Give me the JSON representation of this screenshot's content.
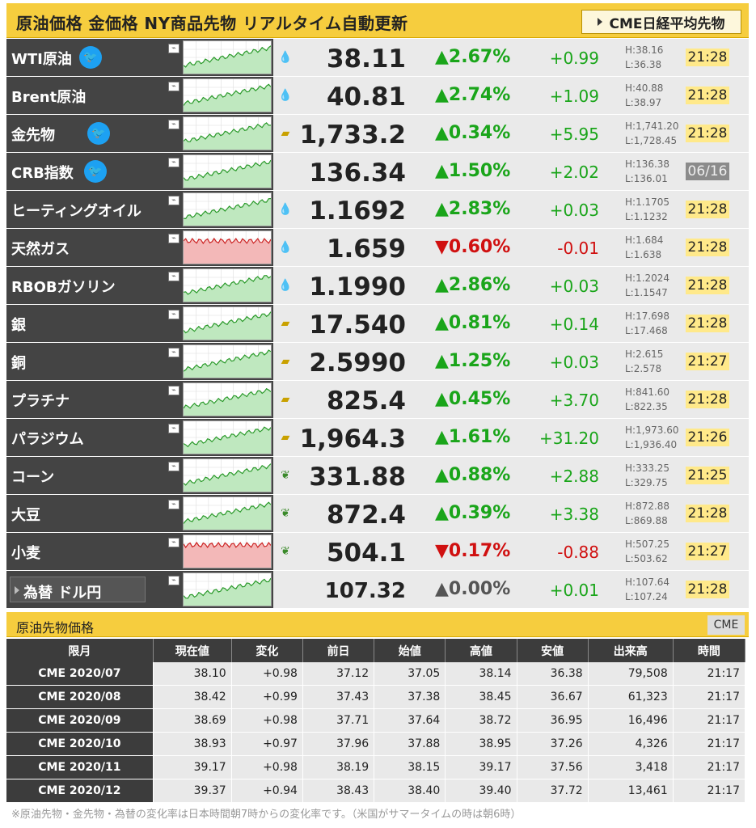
{
  "header": {
    "title": "原油価格 金価格 NY商品先物 リアルタイム自動更新",
    "nikkei_button": "CME日経平均先物"
  },
  "colors": {
    "accent": "#f6cd3e",
    "up": "#1aa51a",
    "down": "#d01010",
    "dark": "#444444",
    "time_bg": "#ffe98a"
  },
  "commodities": [
    {
      "name": "WTI原油",
      "twitter": true,
      "price": "38.11",
      "pct": "▲2.67%",
      "change": "+0.99",
      "high": "H:38.16",
      "low": "L:36.38",
      "time": "21:28",
      "dir": "up",
      "icon": "oil-drop-icon"
    },
    {
      "name": "Brent原油",
      "twitter": false,
      "price": "40.81",
      "pct": "▲2.74%",
      "change": "+1.09",
      "high": "H:40.88",
      "low": "L:38.97",
      "time": "21:28",
      "dir": "up",
      "icon": "oil-drop-icon"
    },
    {
      "name": "金先物",
      "twitter": true,
      "price": "1,733.2",
      "pct": "▲0.34%",
      "change": "+5.95",
      "high": "H:1,741.20",
      "low": "L:1,728.45",
      "time": "21:28",
      "dir": "up",
      "icon": "gold-bar-icon"
    },
    {
      "name": "CRB指数",
      "twitter": true,
      "price": "136.34",
      "pct": "▲1.50%",
      "change": "+2.02",
      "high": "H:136.38",
      "low": "L:136.01",
      "time": "06/16",
      "dir": "up",
      "icon": ""
    },
    {
      "name": "ヒーティングオイル",
      "twitter": false,
      "price": "1.1692",
      "pct": "▲2.83%",
      "change": "+0.03",
      "high": "H:1.1705",
      "low": "L:1.1232",
      "time": "21:28",
      "dir": "up",
      "icon": "oil-drop-icon"
    },
    {
      "name": "天然ガス",
      "twitter": false,
      "price": "1.659",
      "pct": "▼0.60%",
      "change": "-0.01",
      "high": "H:1.684",
      "low": "L:1.638",
      "time": "21:28",
      "dir": "down",
      "icon": "oil-drop-icon"
    },
    {
      "name": "RBOBガソリン",
      "twitter": false,
      "price": "1.1990",
      "pct": "▲2.86%",
      "change": "+0.03",
      "high": "H:1.2024",
      "low": "L:1.1547",
      "time": "21:28",
      "dir": "up",
      "icon": "oil-drop-icon"
    },
    {
      "name": "銀",
      "twitter": false,
      "price": "17.540",
      "pct": "▲0.81%",
      "change": "+0.14",
      "high": "H:17.698",
      "low": "L:17.468",
      "time": "21:28",
      "dir": "up",
      "icon": "gold-bar-icon"
    },
    {
      "name": "銅",
      "twitter": false,
      "price": "2.5990",
      "pct": "▲1.25%",
      "change": "+0.03",
      "high": "H:2.615",
      "low": "L:2.578",
      "time": "21:27",
      "dir": "up",
      "icon": "gold-bar-icon"
    },
    {
      "name": "プラチナ",
      "twitter": false,
      "price": "825.4",
      "pct": "▲0.45%",
      "change": "+3.70",
      "high": "H:841.60",
      "low": "L:822.35",
      "time": "21:28",
      "dir": "up",
      "icon": "gold-bar-icon"
    },
    {
      "name": "パラジウム",
      "twitter": false,
      "price": "1,964.3",
      "pct": "▲1.61%",
      "change": "+31.20",
      "high": "H:1,973.60",
      "low": "L:1,936.40",
      "time": "21:26",
      "dir": "up",
      "icon": "gold-bar-icon"
    },
    {
      "name": "コーン",
      "twitter": false,
      "price": "331.88",
      "pct": "▲0.88%",
      "change": "+2.88",
      "high": "H:333.25",
      "low": "L:329.75",
      "time": "21:25",
      "dir": "up",
      "icon": "wheat-icon"
    },
    {
      "name": "大豆",
      "twitter": false,
      "price": "872.4",
      "pct": "▲0.39%",
      "change": "+3.38",
      "high": "H:872.88",
      "low": "L:869.88",
      "time": "21:28",
      "dir": "up",
      "icon": "wheat-icon"
    },
    {
      "name": "小麦",
      "twitter": false,
      "price": "504.1",
      "pct": "▼0.17%",
      "change": "-0.88",
      "high": "H:507.25",
      "low": "L:503.62",
      "time": "21:27",
      "dir": "down",
      "icon": "wheat-icon"
    }
  ],
  "fx": {
    "name": "為替 ドル円",
    "price": "107.32",
    "pct": "▲0.00%",
    "change": "+0.01",
    "high": "H:107.64",
    "low": "L:107.24",
    "time": "21:28"
  },
  "futures": {
    "title": "原油先物価格",
    "cme_button": "CME",
    "headers": [
      "限月",
      "現在値",
      "変化",
      "前日",
      "始値",
      "高値",
      "安値",
      "出来高",
      "時間"
    ],
    "rows": [
      [
        "CME 2020/07",
        "38.10",
        "+0.98",
        "37.12",
        "37.05",
        "38.14",
        "36.38",
        "79,508",
        "21:17"
      ],
      [
        "CME 2020/08",
        "38.42",
        "+0.99",
        "37.43",
        "37.38",
        "38.45",
        "36.67",
        "61,323",
        "21:17"
      ],
      [
        "CME 2020/09",
        "38.69",
        "+0.98",
        "37.71",
        "37.64",
        "38.72",
        "36.95",
        "16,496",
        "21:17"
      ],
      [
        "CME 2020/10",
        "38.93",
        "+0.97",
        "37.96",
        "37.88",
        "38.95",
        "37.26",
        "4,326",
        "21:17"
      ],
      [
        "CME 2020/11",
        "39.17",
        "+0.98",
        "38.19",
        "38.15",
        "39.17",
        "37.56",
        "3,418",
        "21:17"
      ],
      [
        "CME 2020/12",
        "39.37",
        "+0.94",
        "38.43",
        "38.40",
        "39.40",
        "37.72",
        "13,461",
        "21:17"
      ]
    ]
  },
  "footnote": "※原油先物・金先物・為替の変化率は日本時間朝7時からの変化率です。（米国がサマータイムの時は朝6時）"
}
